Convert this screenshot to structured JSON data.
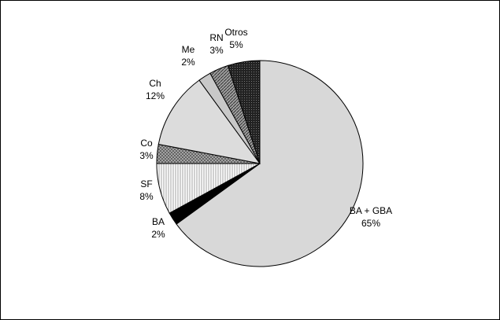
{
  "chart_data": {
    "type": "pie",
    "title": "",
    "legend": "none",
    "slices": [
      {
        "name": "BA + GBA",
        "value": 65,
        "label": "65%",
        "fill": "#d8d8d8",
        "pattern": "solid"
      },
      {
        "name": "BA",
        "value": 2,
        "label": "2%",
        "fill": "#000000",
        "pattern": "solid"
      },
      {
        "name": "SF",
        "value": 8,
        "label": "8%",
        "fill": "#ffffff",
        "pattern": "vertical-lines"
      },
      {
        "name": "Co",
        "value": 3,
        "label": "3%",
        "fill": "#9a9a9a",
        "pattern": "crosshatch"
      },
      {
        "name": "Ch",
        "value": 12,
        "label": "12%",
        "fill": "#dcdcdc",
        "pattern": "solid"
      },
      {
        "name": "Me",
        "value": 2,
        "label": "2%",
        "fill": "#c8c8c8",
        "pattern": "solid"
      },
      {
        "name": "RN",
        "value": 3,
        "label": "3%",
        "fill": "#8c8c8c",
        "pattern": "diagonal"
      },
      {
        "name": "Otros",
        "value": 5,
        "label": "5%",
        "fill": "#3a3a3a",
        "pattern": "dots"
      }
    ]
  }
}
